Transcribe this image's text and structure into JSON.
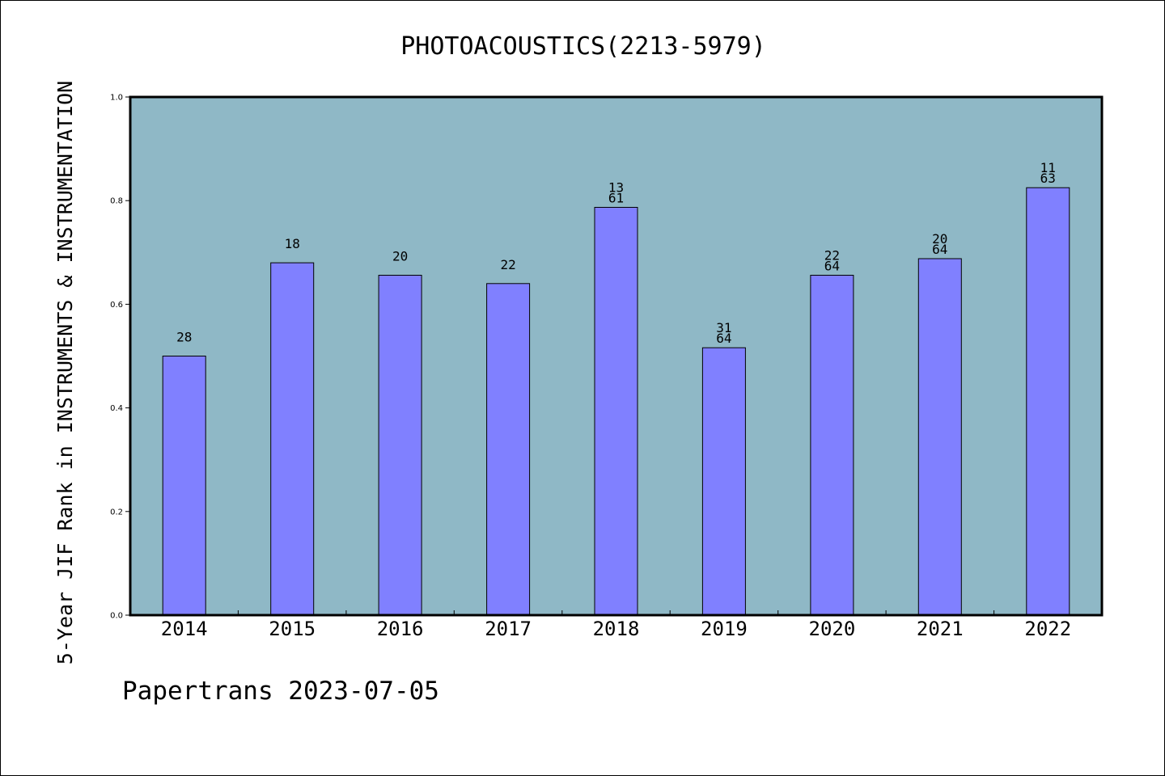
{
  "chart_data": {
    "type": "bar",
    "title": "PHOTOACOUSTICS(2213-5979)",
    "xlabel": "",
    "ylabel": "5-Year JIF Rank in INSTRUMENTS & INSTRUMENTATION",
    "ylim": [
      0.0,
      1.0
    ],
    "yticks": [
      "0.0",
      "0.2",
      "0.4",
      "0.6",
      "0.8",
      "1.0"
    ],
    "categories": [
      "2014",
      "2015",
      "2016",
      "2017",
      "2018",
      "2019",
      "2020",
      "2021",
      "2022"
    ],
    "values": [
      0.5,
      0.68,
      0.656,
      0.64,
      0.787,
      0.516,
      0.656,
      0.688,
      0.825
    ],
    "bar_labels": [
      [
        "28"
      ],
      [
        "18"
      ],
      [
        "20"
      ],
      [
        "22"
      ],
      [
        "13",
        "61"
      ],
      [
        "31",
        "64"
      ],
      [
        "22",
        "64"
      ],
      [
        "20",
        "64"
      ],
      [
        "11",
        "63"
      ]
    ],
    "grid": false,
    "colors": {
      "plot_background": "#8fb8c6",
      "bar_fill": "#8080ff",
      "bar_stroke": "#000000",
      "frame": "#000000"
    }
  },
  "footer": {
    "text": "Papertrans 2023-07-05"
  }
}
